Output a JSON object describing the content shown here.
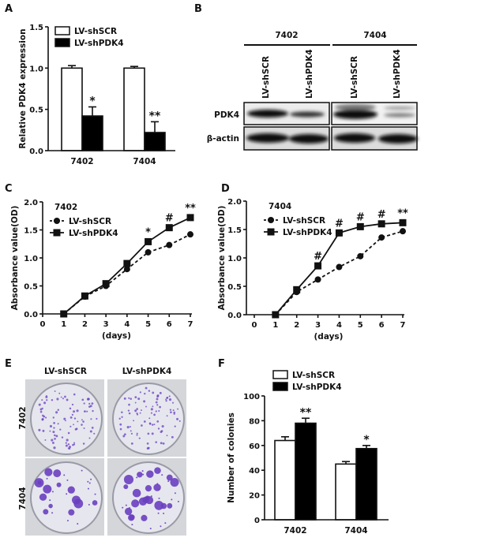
{
  "panels": {
    "a": "A",
    "b": "B",
    "c": "C",
    "d": "D",
    "e": "E",
    "f": "F"
  },
  "legend": {
    "scr": "LV-shSCR",
    "pdk4": "LV-shPDK4"
  },
  "chart_data": [
    {
      "id": "A",
      "type": "bar",
      "ylabel": "Relative PDK4 expression",
      "ylim": [
        0,
        1.5
      ],
      "yticks": [
        "0.0",
        "0.5",
        "1.0",
        "1.5"
      ],
      "categories": [
        "7402",
        "7404"
      ],
      "series": [
        {
          "name": "LV-shSCR",
          "values": [
            1.0,
            1.0
          ],
          "errors": [
            0.03,
            0.02
          ],
          "fill": "#ffffff"
        },
        {
          "name": "LV-shPDK4",
          "values": [
            0.42,
            0.22
          ],
          "errors": [
            0.11,
            0.13
          ],
          "fill": "#000000"
        }
      ],
      "annotations": [
        {
          "category": "7402",
          "series": "LV-shPDK4",
          "text": "*"
        },
        {
          "category": "7404",
          "series": "LV-shPDK4",
          "text": "**"
        }
      ]
    },
    {
      "id": "C",
      "type": "line",
      "title": "7402",
      "xlabel": "(days)",
      "ylabel": "Absorbance value(OD)",
      "xlim": [
        0,
        7
      ],
      "ylim": [
        0,
        2.0
      ],
      "xticks": [
        "0",
        "1",
        "2",
        "3",
        "4",
        "5",
        "6",
        "7"
      ],
      "yticks": [
        "0.0",
        "0.5",
        "1.0",
        "1.5",
        "2.0"
      ],
      "x": [
        1,
        2,
        3,
        4,
        5,
        6,
        7
      ],
      "series": [
        {
          "name": "LV-shSCR",
          "marker": "circle",
          "line": "dashed",
          "values": [
            0,
            0.31,
            0.5,
            0.8,
            1.1,
            1.23,
            1.42
          ]
        },
        {
          "name": "LV-shPDK4",
          "marker": "square",
          "line": "solid",
          "values": [
            0,
            0.32,
            0.54,
            0.9,
            1.29,
            1.54,
            1.72
          ]
        }
      ],
      "annotations": [
        {
          "x": 5,
          "text": "*"
        },
        {
          "x": 6,
          "text": "#"
        },
        {
          "x": 7,
          "text": "**"
        }
      ]
    },
    {
      "id": "D",
      "type": "line",
      "title": "7404",
      "xlabel": "(days)",
      "ylabel": "Absorbance value(OD)",
      "xlim": [
        0,
        7
      ],
      "ylim": [
        0,
        2.0
      ],
      "xticks": [
        "0",
        "1",
        "2",
        "3",
        "4",
        "5",
        "6",
        "7"
      ],
      "yticks": [
        "0.0",
        "0.5",
        "1.0",
        "1.5",
        "2.0"
      ],
      "x": [
        1,
        2,
        3,
        4,
        5,
        6,
        7
      ],
      "series": [
        {
          "name": "LV-shSCR",
          "marker": "circle",
          "line": "dashed",
          "values": [
            0,
            0.4,
            0.62,
            0.84,
            1.03,
            1.36,
            1.47
          ]
        },
        {
          "name": "LV-shPDK4",
          "marker": "square",
          "line": "solid",
          "values": [
            0,
            0.44,
            0.86,
            1.44,
            1.55,
            1.6,
            1.62
          ]
        }
      ],
      "annotations": [
        {
          "x": 3,
          "text": "#"
        },
        {
          "x": 4,
          "text": "#"
        },
        {
          "x": 5,
          "text": "#"
        },
        {
          "x": 6,
          "text": "#"
        },
        {
          "x": 7,
          "text": "**"
        }
      ]
    },
    {
      "id": "F",
      "type": "bar",
      "ylabel": "Number of colonies",
      "ylim": [
        0,
        100
      ],
      "yticks": [
        "0",
        "20",
        "40",
        "60",
        "80",
        "100"
      ],
      "categories": [
        "7402",
        "7404"
      ],
      "series": [
        {
          "name": "LV-shSCR",
          "values": [
            64,
            45
          ],
          "errors": [
            3,
            2
          ],
          "fill": "#ffffff"
        },
        {
          "name": "LV-shPDK4",
          "values": [
            78,
            57.5
          ],
          "errors": [
            4,
            2.5
          ],
          "fill": "#000000"
        }
      ],
      "annotations": [
        {
          "category": "7402",
          "series": "LV-shPDK4",
          "text": "**"
        },
        {
          "category": "7404",
          "series": "LV-shPDK4",
          "text": "*"
        }
      ]
    }
  ],
  "blot": {
    "groups": [
      "7402",
      "7404"
    ],
    "lanes": [
      "LV-shSCR",
      "LV-shPDK4",
      "LV-shSCR",
      "LV-shPDK4"
    ],
    "rows": [
      "PDK4",
      "β-actin"
    ]
  },
  "colony": {
    "columns": [
      "LV-shSCR",
      "LV-shPDK4"
    ],
    "rows": [
      "7402",
      "7404"
    ],
    "stain_color": "#6a3fc0"
  }
}
